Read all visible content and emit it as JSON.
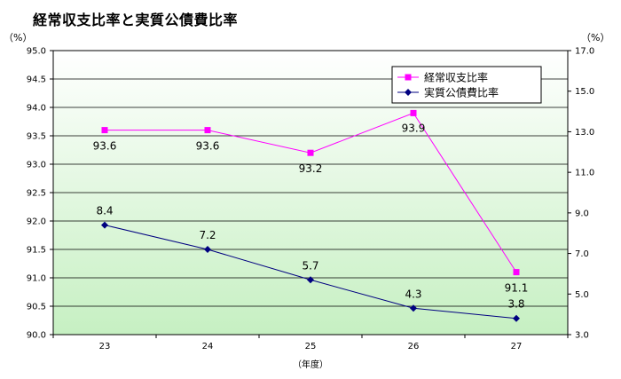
{
  "chart_data": {
    "type": "line",
    "title": "経常収支比率と実質公債費比率",
    "xlabel": "（年度）",
    "ylabel_left": "（%）",
    "ylabel_right": "（%）",
    "categories": [
      "23",
      "24",
      "25",
      "26",
      "27"
    ],
    "y_left": {
      "min": 90.0,
      "max": 95.0,
      "ticks": [
        "90.0",
        "90.5",
        "91.0",
        "91.5",
        "92.0",
        "92.5",
        "93.0",
        "93.5",
        "94.0",
        "94.5",
        "95.0"
      ]
    },
    "y_right": {
      "min": 3.0,
      "max": 17.0,
      "ticks": [
        "3.0",
        "5.0",
        "7.0",
        "9.0",
        "11.0",
        "13.0",
        "15.0",
        "17.0"
      ]
    },
    "grid": true,
    "legend_position": "top-right",
    "series": [
      {
        "name": "経常収支比率",
        "axis": "left",
        "color": "#ff00ff",
        "marker": "square",
        "values": [
          93.6,
          93.6,
          93.2,
          93.9,
          91.1
        ],
        "labels": [
          "93.6",
          "93.6",
          "93.2",
          "93.9",
          "91.1"
        ]
      },
      {
        "name": "実質公債費比率",
        "axis": "right",
        "color": "#000080",
        "marker": "diamond",
        "values": [
          8.4,
          7.2,
          5.7,
          4.3,
          3.8
        ],
        "labels": [
          "8.4",
          "7.2",
          "5.7",
          "4.3",
          "3.8"
        ]
      }
    ]
  }
}
